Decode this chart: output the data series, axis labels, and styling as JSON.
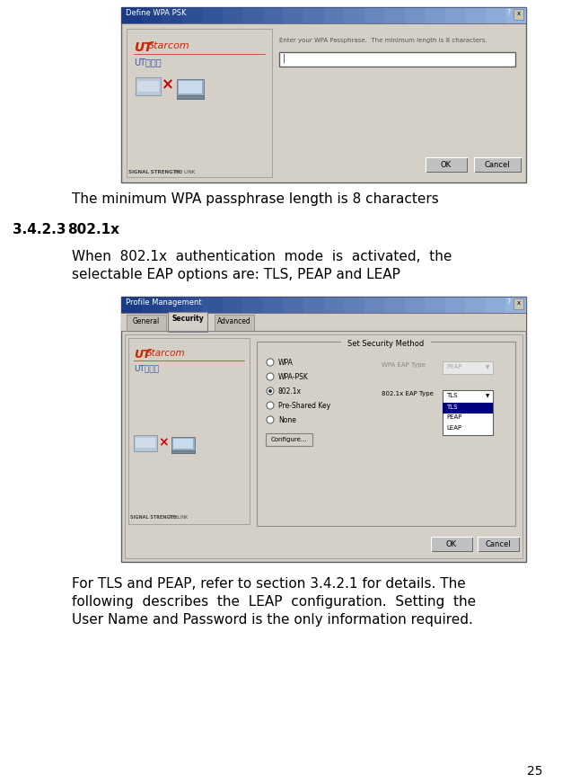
{
  "page_bg": "#ffffff",
  "page_width": 6.26,
  "page_height": 8.71,
  "dpi": 100,
  "text_color": "#000000",
  "section_label": "3.4.2.3",
  "section_title": "802.1x",
  "caption1": "The minimum WPA passphrase length is 8 characters",
  "para1_line1": "When  802.1x  authentication  mode  is  activated,  the",
  "para1_line2": "selectable EAP options are: TLS, PEAP and LEAP",
  "para2_line1": "For TLS and PEAP, refer to section 3.4.2.1 for details. The",
  "para2_line2": "following  describes  the  LEAP  configuration.  Setting  the",
  "para2_line3": "User Name and Password is the only information required.",
  "page_num": "25",
  "win_bg": "#d4d0c8",
  "win_title_bg1": "#4169b0",
  "win_title_bg2": "#7090c8",
  "win_border": "#808080",
  "ut_red": "#cc2200",
  "ut_blue": "#3355aa",
  "dropdown_sel_bg": "#000080",
  "btn_bg": "#d4d0c8",
  "input_bg": "#ffffff",
  "note_text": "#555555"
}
